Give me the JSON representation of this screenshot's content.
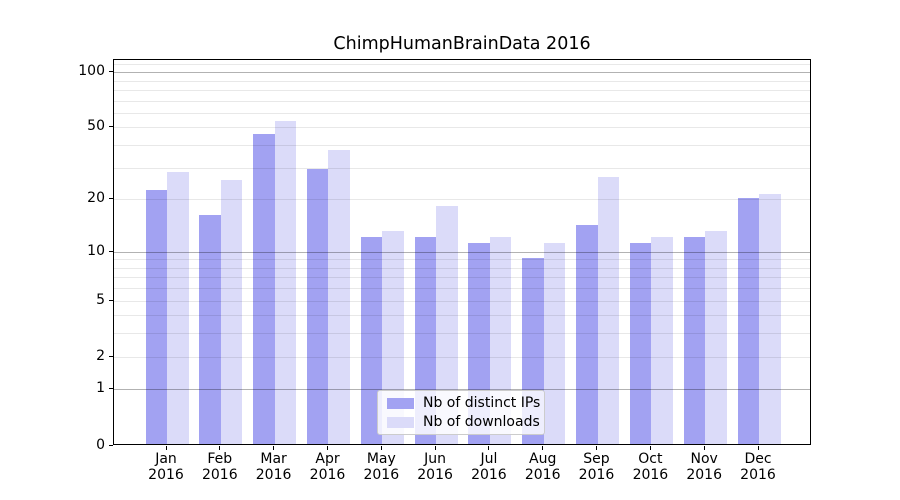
{
  "chart_data": {
    "type": "bar",
    "title": "ChimpHumanBrainData 2016",
    "categories": [
      "Jan",
      "Feb",
      "Mar",
      "Apr",
      "May",
      "Jun",
      "Jul",
      "Aug",
      "Sep",
      "Oct",
      "Nov",
      "Dec"
    ],
    "year_label": "2016",
    "series": [
      {
        "name": "Nb of distinct IPs",
        "color": "#a2a2f2",
        "values": [
          22,
          16,
          45,
          29,
          12,
          12,
          11,
          9,
          14,
          11,
          12,
          20
        ]
      },
      {
        "name": "Nb of downloads",
        "color": "#dbdbf9",
        "values": [
          28,
          25,
          53,
          37,
          13,
          18,
          12,
          11,
          26,
          12,
          13,
          21
        ]
      }
    ],
    "xlabel": "",
    "ylabel": "",
    "yscale": "log1p",
    "ylim": [
      0,
      117
    ],
    "yticks": [
      0,
      1,
      2,
      5,
      10,
      20,
      50,
      100
    ],
    "grid": true,
    "gridlines": {
      "major": [
        1,
        10,
        100
      ],
      "minor": [
        2,
        3,
        4,
        5,
        6,
        7,
        8,
        9,
        20,
        30,
        40,
        50,
        60,
        70,
        80,
        90,
        110
      ],
      "major_color": "rgba(0,0,0,0.30)",
      "minor_color": "rgba(0,0,0,0.09)"
    },
    "legend_position": "lower center"
  },
  "colors": {
    "background": "#ffffff",
    "axis": "#000000",
    "bar_distinct_ips": "#a2a2f2",
    "bar_downloads": "#dbdbf9"
  }
}
